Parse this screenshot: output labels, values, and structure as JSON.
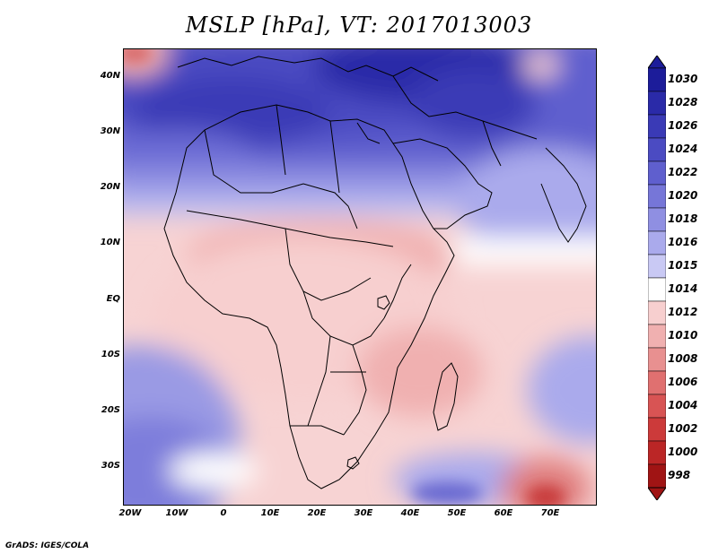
{
  "title": "MSLP [hPa], VT: 2017013003",
  "credit": "GrADS: IGES/COLA",
  "axes": {
    "lat_labels": [
      "40N",
      "30N",
      "20N",
      "10N",
      "EQ",
      "10S",
      "20S",
      "30S"
    ],
    "lon_labels": [
      "20W",
      "10W",
      "0",
      "10E",
      "20E",
      "30E",
      "40E",
      "50E",
      "60E",
      "70E"
    ]
  },
  "colorbar": {
    "levels": [
      "1030",
      "1028",
      "1026",
      "1024",
      "1022",
      "1020",
      "1018",
      "1016",
      "1015",
      "1014",
      "1012",
      "1010",
      "1008",
      "1006",
      "1004",
      "1002",
      "1000",
      "998"
    ],
    "colors": [
      "#1c1c9a",
      "#2a2aa8",
      "#3a3ab6",
      "#4b4bc2",
      "#5f5fce",
      "#7676d8",
      "#8f8fe2",
      "#aaaaec",
      "#c9c9f4",
      "#ffffff",
      "#f7cfcf",
      "#f0b0b0",
      "#e89090",
      "#e07070",
      "#d85454",
      "#cc3a3a",
      "#bb2626",
      "#a01414"
    ]
  }
}
